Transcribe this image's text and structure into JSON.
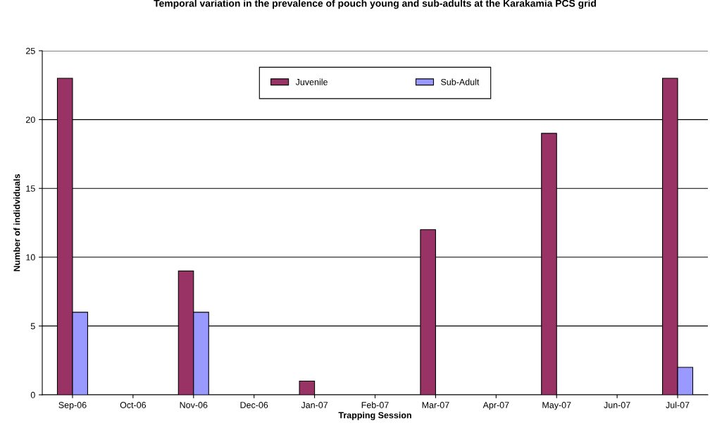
{
  "chart_data": {
    "type": "bar",
    "title": "Temporal variation in the prevalence of pouch young and sub-adults at the Karakamia PCS grid",
    "xlabel": "Trapping Session",
    "ylabel": "Number of indidviduals",
    "categories": [
      "Sep-06",
      "Oct-06",
      "Nov-06",
      "Dec-06",
      "Jan-07",
      "Feb-07",
      "Mar-07",
      "Apr-07",
      "May-07",
      "Jun-07",
      "Jul-07"
    ],
    "series": [
      {
        "name": "Juvenile",
        "color": "#993366",
        "values": [
          23,
          null,
          9,
          null,
          1,
          null,
          12,
          null,
          19,
          null,
          23
        ]
      },
      {
        "name": "Sub-Adult",
        "color": "#9999ff",
        "values": [
          6,
          null,
          6,
          null,
          null,
          null,
          null,
          null,
          null,
          null,
          2
        ]
      }
    ],
    "ylim": [
      0,
      25
    ],
    "yticks": [
      0,
      5,
      10,
      15,
      20,
      25
    ],
    "grid": "y",
    "legend": "top"
  }
}
